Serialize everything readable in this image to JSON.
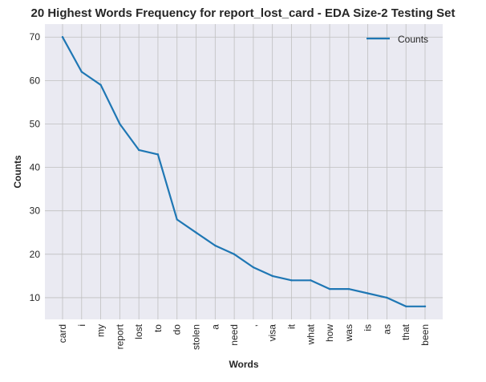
{
  "chart_data": {
    "type": "line",
    "title": "20 Highest Words Frequency for report_lost_card - EDA Size-2 Testing Set",
    "xlabel": "Words",
    "ylabel": "Counts",
    "categories": [
      "card",
      "i",
      "my",
      "report",
      "lost",
      "to",
      "do",
      "stolen",
      "a",
      "need",
      ",",
      "visa",
      "it",
      "what",
      "how",
      "was",
      "is",
      "as",
      "that",
      "been"
    ],
    "series": [
      {
        "name": "Counts",
        "color": "#1f77b4",
        "values": [
          70,
          62,
          59,
          50,
          44,
          43,
          28,
          25,
          22,
          20,
          17,
          15,
          14,
          14,
          12,
          12,
          11,
          10,
          8,
          8
        ]
      }
    ],
    "yticks": [
      10,
      20,
      30,
      40,
      50,
      60,
      70
    ],
    "ylim": [
      5,
      73
    ],
    "grid": true,
    "legend_position": "top-right",
    "background_color": "#eaeaf2",
    "grid_color": "#bfbfbf"
  }
}
